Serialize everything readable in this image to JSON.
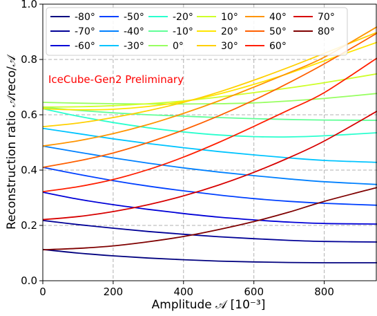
{
  "chart_data": {
    "type": "line",
    "xlabel": "Amplitude 𝒜 [10⁻³]",
    "ylabel": "Reconstruction ratio 𝒜reco/𝒜",
    "xlim": [
      0,
      950
    ],
    "ylim": [
      0.0,
      1.0
    ],
    "xticks": [
      "0",
      "200",
      "400",
      "600",
      "800"
    ],
    "xtick_values": [
      0,
      200,
      400,
      600,
      800
    ],
    "yticks": [
      "0.0",
      "0.2",
      "0.4",
      "0.6",
      "0.8",
      "1.0"
    ],
    "ytick_values": [
      0.0,
      0.2,
      0.4,
      0.6,
      0.8,
      1.0
    ],
    "grid": true,
    "legend_position": "top-left",
    "annotation": {
      "text": "IceCube-Gen2 Preliminary",
      "color": "#ff0000"
    },
    "x": [
      0,
      100,
      200,
      300,
      400,
      500,
      600,
      700,
      800,
      950
    ],
    "series": [
      {
        "name": "-80°",
        "color": "#00007f",
        "values": [
          0.113,
          0.1,
          0.09,
          0.082,
          0.076,
          0.071,
          0.068,
          0.066,
          0.065,
          0.065
        ]
      },
      {
        "name": "-70°",
        "color": "#000096",
        "values": [
          0.218,
          0.203,
          0.19,
          0.178,
          0.168,
          0.159,
          0.152,
          0.146,
          0.142,
          0.14
        ]
      },
      {
        "name": "-60°",
        "color": "#0000d7",
        "values": [
          0.32,
          0.295,
          0.275,
          0.258,
          0.243,
          0.23,
          0.22,
          0.212,
          0.207,
          0.205
        ]
      },
      {
        "name": "-50°",
        "color": "#0040ff",
        "values": [
          0.41,
          0.385,
          0.362,
          0.342,
          0.325,
          0.31,
          0.297,
          0.287,
          0.28,
          0.273
        ]
      },
      {
        "name": "-40°",
        "color": "#0080ff",
        "values": [
          0.487,
          0.465,
          0.444,
          0.425,
          0.408,
          0.393,
          0.38,
          0.368,
          0.358,
          0.348
        ]
      },
      {
        "name": "-30°",
        "color": "#00c4ff",
        "values": [
          0.551,
          0.532,
          0.513,
          0.496,
          0.481,
          0.467,
          0.455,
          0.444,
          0.435,
          0.428
        ]
      },
      {
        "name": "-20°",
        "color": "#29ffce",
        "values": [
          0.622,
          0.595,
          0.572,
          0.553,
          0.538,
          0.527,
          0.521,
          0.52,
          0.524,
          0.535
        ]
      },
      {
        "name": "-10°",
        "color": "#60ff97",
        "values": [
          0.627,
          0.616,
          0.607,
          0.6,
          0.595,
          0.59,
          0.586,
          0.583,
          0.581,
          0.58
        ]
      },
      {
        "name": "0°",
        "color": "#97ff60",
        "values": [
          0.645,
          0.642,
          0.64,
          0.639,
          0.639,
          0.64,
          0.643,
          0.65,
          0.659,
          0.677
        ]
      },
      {
        "name": "10°",
        "color": "#ceff29",
        "values": [
          0.628,
          0.629,
          0.633,
          0.64,
          0.65,
          0.664,
          0.68,
          0.697,
          0.716,
          0.748
        ]
      },
      {
        "name": "20°",
        "color": "#ffe500",
        "values": [
          0.622,
          0.618,
          0.62,
          0.63,
          0.648,
          0.675,
          0.71,
          0.75,
          0.795,
          0.862
        ]
      },
      {
        "name": "30°",
        "color": "#ffd000",
        "values": [
          0.557,
          0.57,
          0.59,
          0.615,
          0.645,
          0.682,
          0.725,
          0.772,
          0.822,
          0.898
        ]
      },
      {
        "name": "40°",
        "color": "#ff9400",
        "values": [
          0.487,
          0.506,
          0.532,
          0.565,
          0.605,
          0.65,
          0.7,
          0.752,
          0.808,
          0.918
        ]
      },
      {
        "name": "50°",
        "color": "#ff5f00",
        "values": [
          0.41,
          0.433,
          0.462,
          0.5,
          0.545,
          0.596,
          0.653,
          0.716,
          0.784,
          0.895
        ]
      },
      {
        "name": "60°",
        "color": "#ff1e00",
        "values": [
          0.322,
          0.34,
          0.366,
          0.402,
          0.447,
          0.5,
          0.558,
          0.618,
          0.68,
          0.805
        ]
      },
      {
        "name": "70°",
        "color": "#d70000",
        "values": [
          0.221,
          0.232,
          0.25,
          0.275,
          0.307,
          0.346,
          0.392,
          0.445,
          0.505,
          0.613
        ]
      },
      {
        "name": "80°",
        "color": "#7f0000",
        "values": [
          0.112,
          0.117,
          0.126,
          0.141,
          0.16,
          0.185,
          0.214,
          0.248,
          0.287,
          0.337
        ]
      }
    ]
  }
}
